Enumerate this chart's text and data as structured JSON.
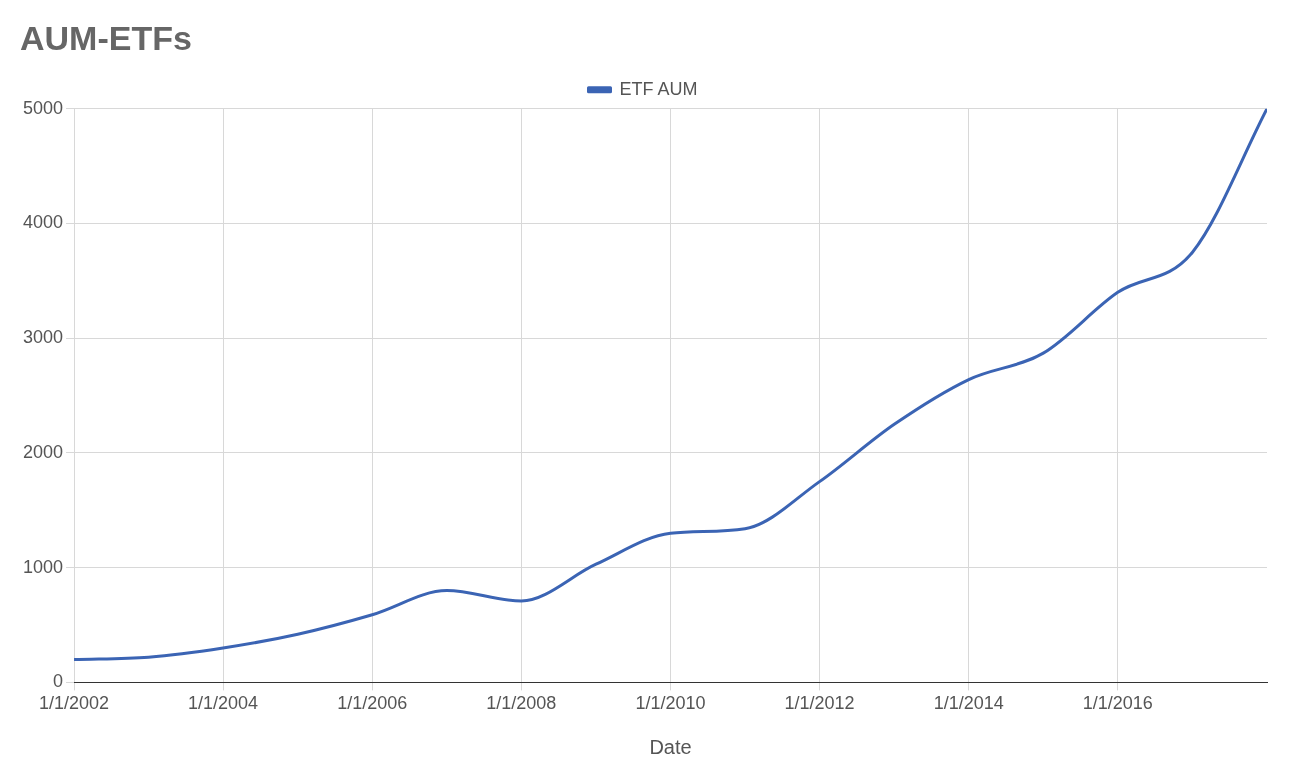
{
  "chart_data": {
    "type": "line",
    "title": "AUM-ETFs",
    "xlabel": "Date",
    "x": [
      "2002-01-01",
      "2003-01-01",
      "2004-01-01",
      "2005-01-01",
      "2006-01-01",
      "2007-01-01",
      "2008-01-01",
      "2009-01-01",
      "2010-01-01",
      "2011-01-01",
      "2012-01-01",
      "2013-01-01",
      "2014-01-01",
      "2015-01-01",
      "2016-01-01",
      "2017-01-01",
      "2018-01-01"
    ],
    "series": [
      {
        "name": "ETF AUM",
        "color": "#3b64b4",
        "values": [
          200,
          220,
          300,
          420,
          590,
          800,
          710,
          1030,
          1300,
          1340,
          1750,
          2250,
          2640,
          2870,
          3400,
          3750,
          5000
        ]
      }
    ],
    "xlim": [
      "2002-01-01",
      "2018-01-01"
    ],
    "xticks": [
      {
        "value": "2002-01-01",
        "label": "1/1/2002"
      },
      {
        "value": "2004-01-01",
        "label": "1/1/2004"
      },
      {
        "value": "2006-01-01",
        "label": "1/1/2006"
      },
      {
        "value": "2008-01-01",
        "label": "1/1/2008"
      },
      {
        "value": "2010-01-01",
        "label": "1/1/2010"
      },
      {
        "value": "2012-01-01",
        "label": "1/1/2012"
      },
      {
        "value": "2014-01-01",
        "label": "1/1/2014"
      },
      {
        "value": "2016-01-01",
        "label": "1/1/2016"
      }
    ],
    "ylim": [
      0,
      5000
    ],
    "yticks": [
      0,
      1000,
      2000,
      3000,
      4000,
      5000
    ],
    "grid": true,
    "legend": "top",
    "marker": "none",
    "line_style": "solid"
  }
}
